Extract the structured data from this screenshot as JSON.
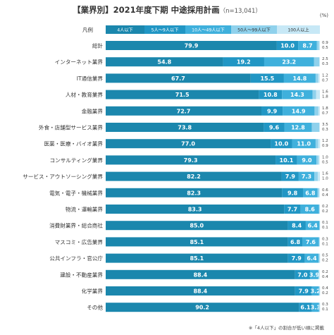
{
  "header": {
    "title": "【業界別】2021年度下期 中途採用計画",
    "sample": "（n=13,041）",
    "unit": "(%)"
  },
  "legend_label": "凡例",
  "note": "※「4人以下」の割合が低い順に掲載",
  "colors": {
    "s1": "#1b87ad",
    "s2": "#2196c4",
    "s3": "#3fb0dc",
    "s4": "#8fd1ec",
    "s5": "#c7e8f6"
  },
  "chart_data": {
    "type": "bar",
    "stacked": true,
    "orientation": "horizontal",
    "xlim": [
      0,
      100
    ],
    "legend_position": "top",
    "categories": [
      "総計",
      "インターネット業界",
      "IT通信業界",
      "人材・教育業界",
      "金融業界",
      "外食・店舗型サービス業界",
      "医薬・医療・バイオ業界",
      "コンサルティング業界",
      "サービス・アウトソーシング業界",
      "電気・電子・機械業界",
      "物流・運輸業界",
      "消費財業界・総合商社",
      "マスコミ・広告業界",
      "公共インフラ・官公庁",
      "建設・不動産業界",
      "化学業界",
      "その他"
    ],
    "series": [
      {
        "name": "4人以下",
        "values": [
          79.9,
          54.8,
          67.7,
          71.5,
          72.7,
          73.8,
          77.0,
          79.3,
          82.2,
          82.3,
          83.3,
          85.0,
          85.1,
          85.1,
          88.4,
          88.4,
          90.2
        ]
      },
      {
        "name": "5人～9人以下",
        "values": [
          10.0,
          19.2,
          15.5,
          10.8,
          9.9,
          9.6,
          10.0,
          10.1,
          7.9,
          9.8,
          7.7,
          8.4,
          6.8,
          7.9,
          7.0,
          7.9,
          6.1
        ]
      },
      {
        "name": "10人～49人以下",
        "values": [
          8.7,
          23.2,
          14.8,
          14.3,
          14.9,
          12.8,
          11.0,
          9.0,
          7.3,
          6.8,
          8.6,
          6.4,
          7.6,
          6.4,
          3.9,
          3.2,
          3.3
        ]
      },
      {
        "name": "50人～99人以下",
        "values": [
          0.9,
          2.5,
          1.2,
          1.6,
          1.8,
          3.5,
          1.2,
          1.0,
          1.6,
          0.6,
          0.2,
          0.1,
          0.3,
          0.5,
          0.2,
          0.4,
          0.3
        ]
      },
      {
        "name": "100人以上",
        "values": [
          0.5,
          0.3,
          0.7,
          1.8,
          0.7,
          0.3,
          0.9,
          0.5,
          1.0,
          0.4,
          0.2,
          0.1,
          0.1,
          0.2,
          0.4,
          0.2,
          0.1
        ]
      }
    ]
  }
}
